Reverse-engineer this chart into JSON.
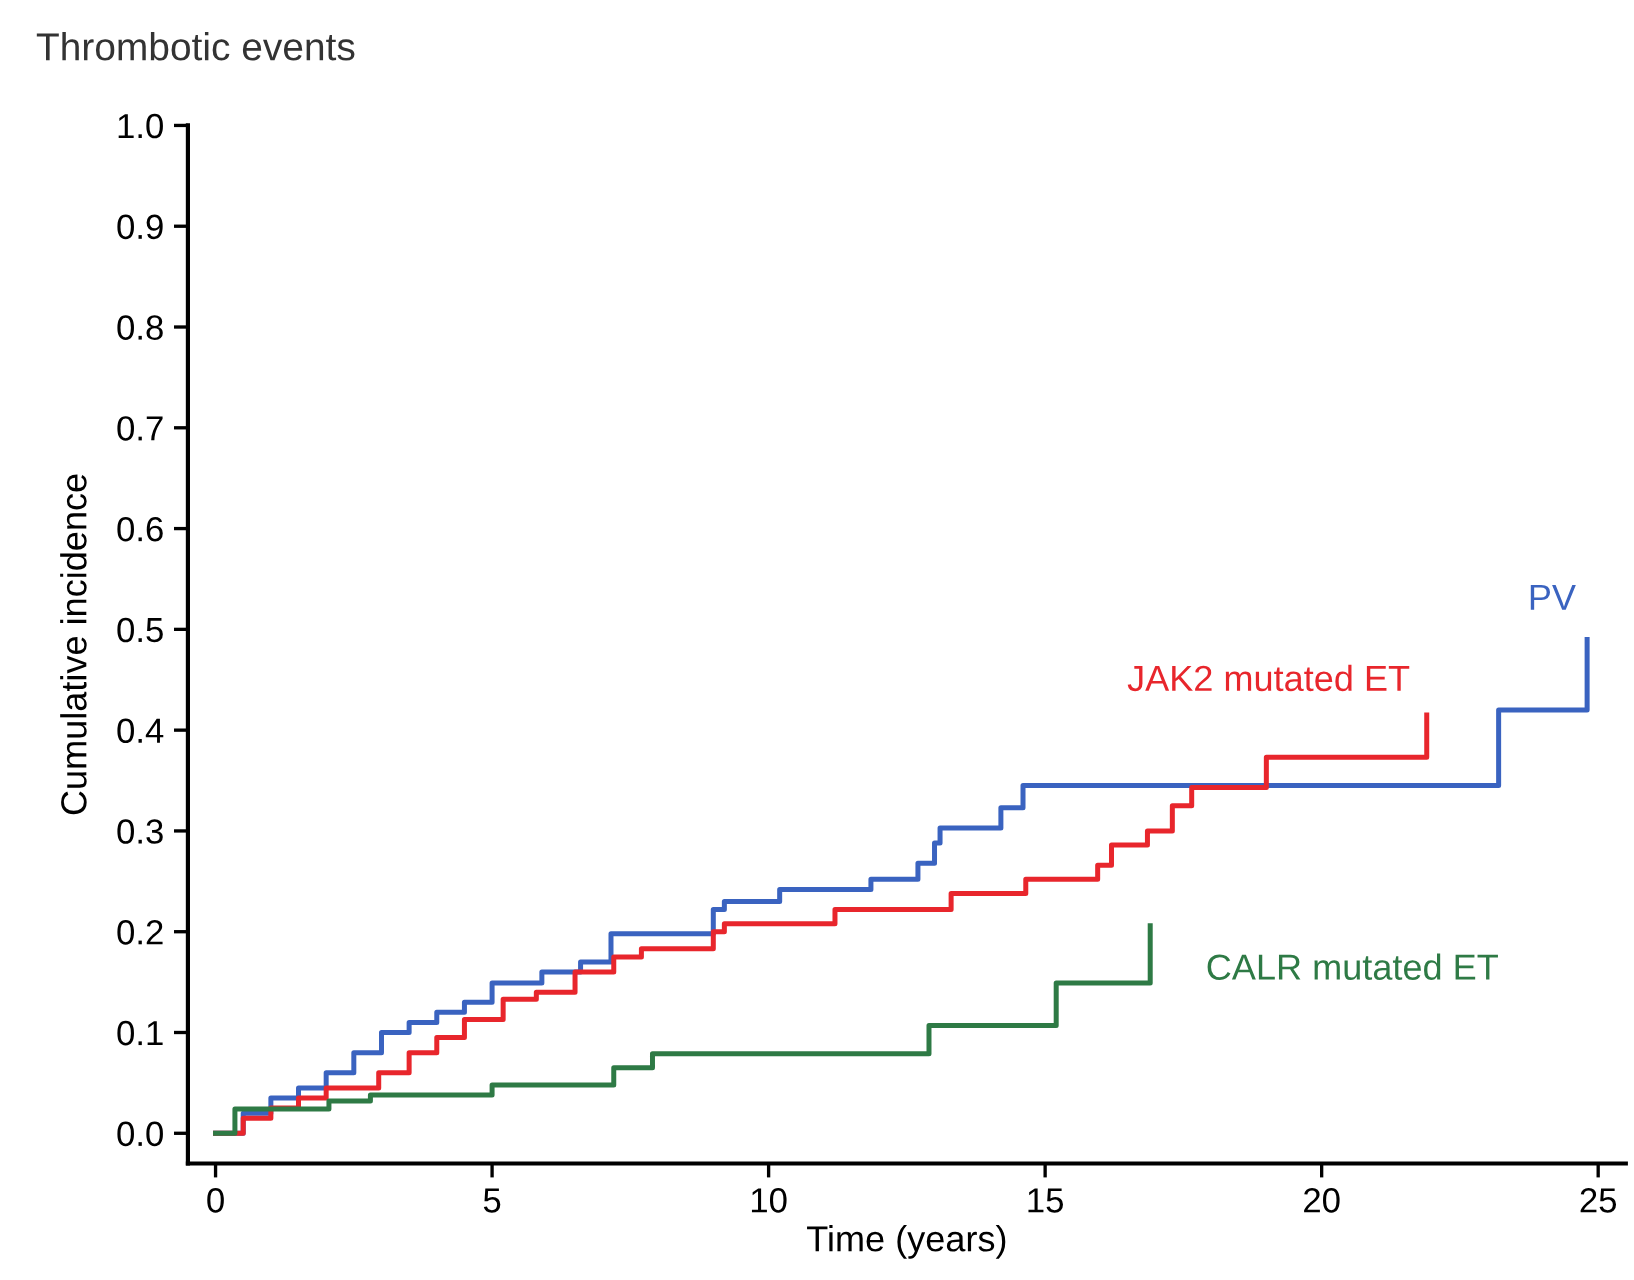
{
  "chart_data": {
    "type": "step",
    "title": "Thrombotic events",
    "xlabel": "Time (years)",
    "ylabel": "Cumulative incidence",
    "xlim": [
      -0.5,
      25.5
    ],
    "xticks": [
      0,
      5,
      10,
      15,
      20,
      25
    ],
    "ylim": [
      -0.03,
      1.0
    ],
    "yticks": [
      {
        "value": 0.0,
        "label": "0.0"
      },
      {
        "value": 0.1,
        "label": "0.1"
      },
      {
        "value": 0.2,
        "label": "0.2"
      },
      {
        "value": 0.3,
        "label": "0.3"
      },
      {
        "value": 0.4,
        "label": "0.4"
      },
      {
        "value": 0.5,
        "label": "0.5"
      },
      {
        "value": 0.6,
        "label": "0.6"
      },
      {
        "value": 0.7,
        "label": "0.7"
      },
      {
        "value": 0.8,
        "label": "0.8"
      },
      {
        "value": 0.9,
        "label": "0.9"
      },
      {
        "value": 1.0,
        "label": "1.0"
      }
    ],
    "grid": false,
    "legend": false,
    "series": [
      {
        "name": "PV",
        "color": "#3a63c0",
        "x": [
          0,
          0.5,
          1.0,
          1.5,
          2.0,
          2.5,
          3.0,
          3.5,
          4.0,
          4.5,
          5.0,
          5.9,
          6.6,
          7.15,
          9.0,
          9.2,
          10.2,
          11.85,
          12.7,
          13.0,
          13.1,
          14.2,
          14.6,
          23.2,
          24.8,
          24.8
        ],
        "values": [
          0,
          0.02,
          0.035,
          0.045,
          0.06,
          0.08,
          0.1,
          0.11,
          0.12,
          0.13,
          0.149,
          0.16,
          0.17,
          0.198,
          0.222,
          0.23,
          0.242,
          0.252,
          0.268,
          0.288,
          0.303,
          0.323,
          0.345,
          0.42,
          0.49,
          0.49
        ]
      },
      {
        "name": "JAK2 mutated ET",
        "color": "#e8262c",
        "x": [
          0,
          0.5,
          1.0,
          1.5,
          2.0,
          2.95,
          3.5,
          4.0,
          4.5,
          5.2,
          5.8,
          6.5,
          7.2,
          7.7,
          9.0,
          9.2,
          11.2,
          13.3,
          14.65,
          15.95,
          16.2,
          16.85,
          17.3,
          17.65,
          19.0,
          21.9,
          21.9
        ],
        "values": [
          0,
          0.015,
          0.025,
          0.035,
          0.045,
          0.06,
          0.08,
          0.095,
          0.113,
          0.133,
          0.14,
          0.16,
          0.175,
          0.183,
          0.2,
          0.208,
          0.222,
          0.238,
          0.252,
          0.266,
          0.286,
          0.3,
          0.325,
          0.343,
          0.373,
          0.415,
          0.415
        ]
      },
      {
        "name": "CALR mutated ET",
        "color": "#2e7a45",
        "x": [
          0,
          0.35,
          2.05,
          2.8,
          5.0,
          7.2,
          7.9,
          12.9,
          15.2,
          16.9,
          16.9
        ],
        "values": [
          0,
          0.024,
          0.032,
          0.038,
          0.048,
          0.065,
          0.079,
          0.107,
          0.149,
          0.206,
          0.206
        ]
      }
    ]
  }
}
